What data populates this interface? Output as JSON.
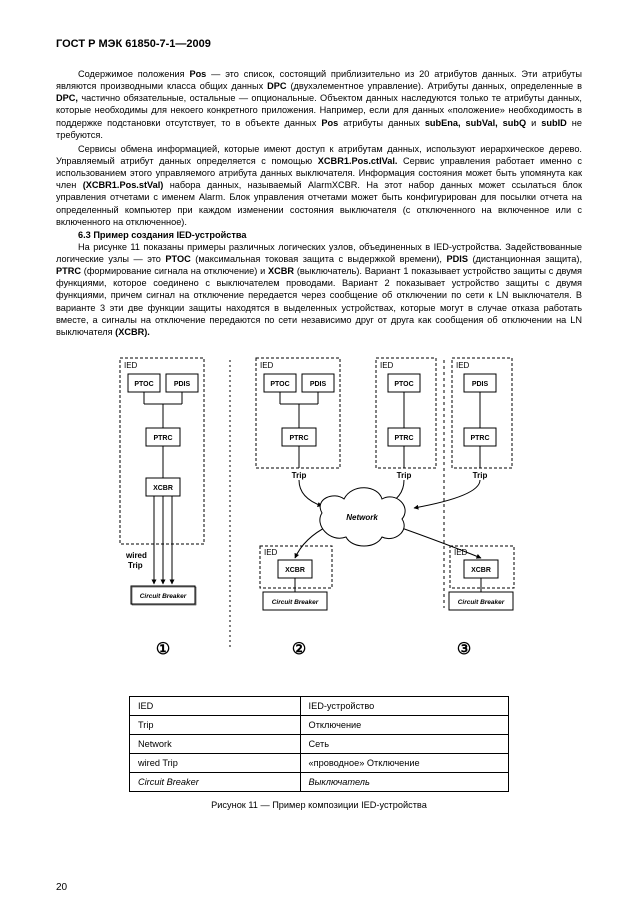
{
  "docHeader": "ГОСТ Р МЭК 61850-7-1—2009",
  "para1_pre": "Содержимое положения ",
  "para1_b1": "Pos",
  "para1_mid1": " — это список, состоящий приблизительно из 20 атрибутов данных. Эти атрибуты являются производными класса общих данных ",
  "para1_b2": "DPC",
  "para1_mid2": " (двухэлементное управление). Атрибуты данных, определенные в ",
  "para1_b3": "DPC,",
  "para1_mid3": " частично обязательные, остальные — опциональные. Объектом данных наследуются только те атрибуты данных, которые необходимы для некоего конкретного приложения. Например, если для данных «положение» необходимость в поддержке подстановки отсутствует, то в объекте данных ",
  "para1_b4": "Pos",
  "para1_mid4": " атрибуты данных ",
  "para1_b5": "subEna, subVal, subQ",
  "para1_mid5": " и ",
  "para1_b6": "subID",
  "para1_end": " не требуются.",
  "para2_pre": "Сервисы обмена информацией, которые имеют доступ к атрибутам данных, используют иерархическое дерево. Управляемый атрибут данных определяется с помощью ",
  "para2_b1": "XCBR1.Pos.ctIVal.",
  "para2_mid1": " Сервис управления работает именно с использованием этого управляемого атрибута данных выключателя. Информация состояния может быть упомянута как член ",
  "para2_b2": "(XCBR1.Pos.stVal)",
  "para2_end": " набора данных, называемый AlarmXCBR. На этот набор данных может ссылаться блок управления отчетами с именем Alarm. Блок управления отчетами может быть конфигурирован для посылки отчета на определенный компьютер при каждом изменении состояния выключателя (с отключенного на включенное или с включенного на отключенное).",
  "sectionTitle": "6.3 Пример создания IED-устройства",
  "para3_pre": "На рисунке 11 показаны примеры различных логических узлов, объединенных в IED-устройства. Задействованные логические узлы — это ",
  "para3_b1": "PTOC",
  "para3_mid1": " (максимальная токовая защита с выдержкой времени), ",
  "para3_b2": "PDIS",
  "para3_mid2": " (дистанционная защита), ",
  "para3_b3": "PTRC",
  "para3_mid3": " (формирование сигнала на отключение) и ",
  "para3_b4": "XCBR",
  "para3_mid4": " (выключатель). Вариант 1 показывает устройство защиты с двумя функциями, которое соединено с выключателем проводами. Вариант 2 показывает устройство защиты с двумя функциями, причем сигнал на отключение передается через сообщение об отключении по сети к LN выключателя. В варианте 3 эти две функции защиты находятся в выделенных устройствах, которые могут в случае отказа работать вместе, а сигналы на отключение передаются по сети независимо друг от друга как сообщения об отключении на LN выключателя ",
  "para3_b5": "(XCBR).",
  "diagram": {
    "ied_label": "IED",
    "ptoc": "PTOC",
    "pdis": "PDIS",
    "ptrc": "PTRC",
    "xcbr": "XCBR",
    "trip": "Trip",
    "wired_trip_l1": "wired",
    "wired_trip_l2": "Trip",
    "network": "Network",
    "circuit_breaker": "Circuit Breaker",
    "num1": "①",
    "num2": "②",
    "num3": "③",
    "colors": {
      "stroke": "#000000",
      "fill": "#ffffff",
      "shade": "#f0f0f0"
    }
  },
  "legend": {
    "rows": [
      [
        "IED",
        "IED-устройство"
      ],
      [
        "Trip",
        "Отключение"
      ],
      [
        "Network",
        "Сеть"
      ],
      [
        "wired Trip",
        "«проводное» Отключение"
      ],
      [
        "Circuit Breaker",
        "Выключатель"
      ]
    ],
    "italicRow": 4
  },
  "caption": "Рисунок 11 — Пример композиции IED-устройства",
  "pageNumber": "20"
}
